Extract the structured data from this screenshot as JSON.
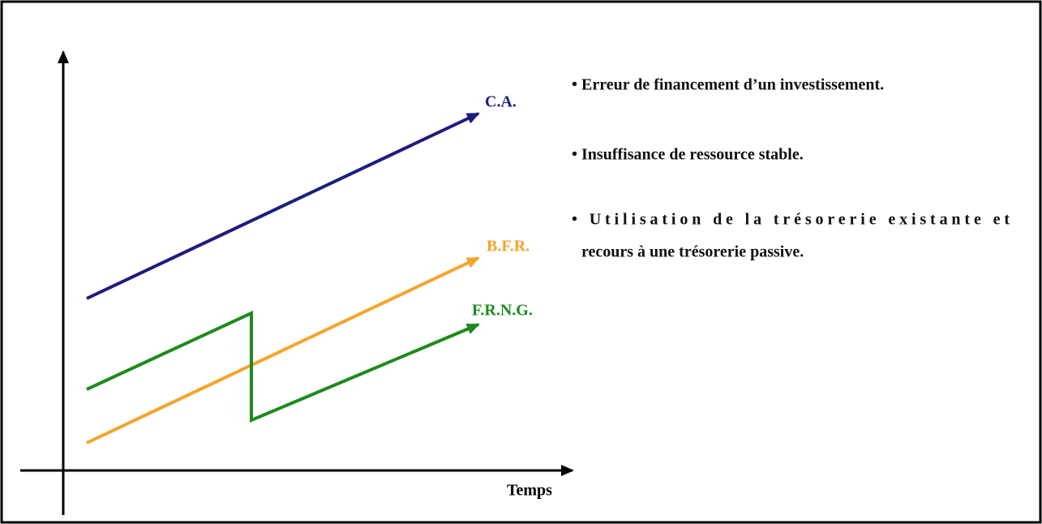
{
  "diagram": {
    "labels": {
      "ca": "C.A.",
      "bfr": "B.F.R.",
      "frng": "F.R.N.G.",
      "x_axis": "Temps"
    },
    "bullets": [
      "• Erreur de financement d’un investissement.",
      "• Insuffisance de ressource stable.",
      "• Utilisation de la trésorerie existante et",
      "recours à une trésorerie passive."
    ]
  }
}
